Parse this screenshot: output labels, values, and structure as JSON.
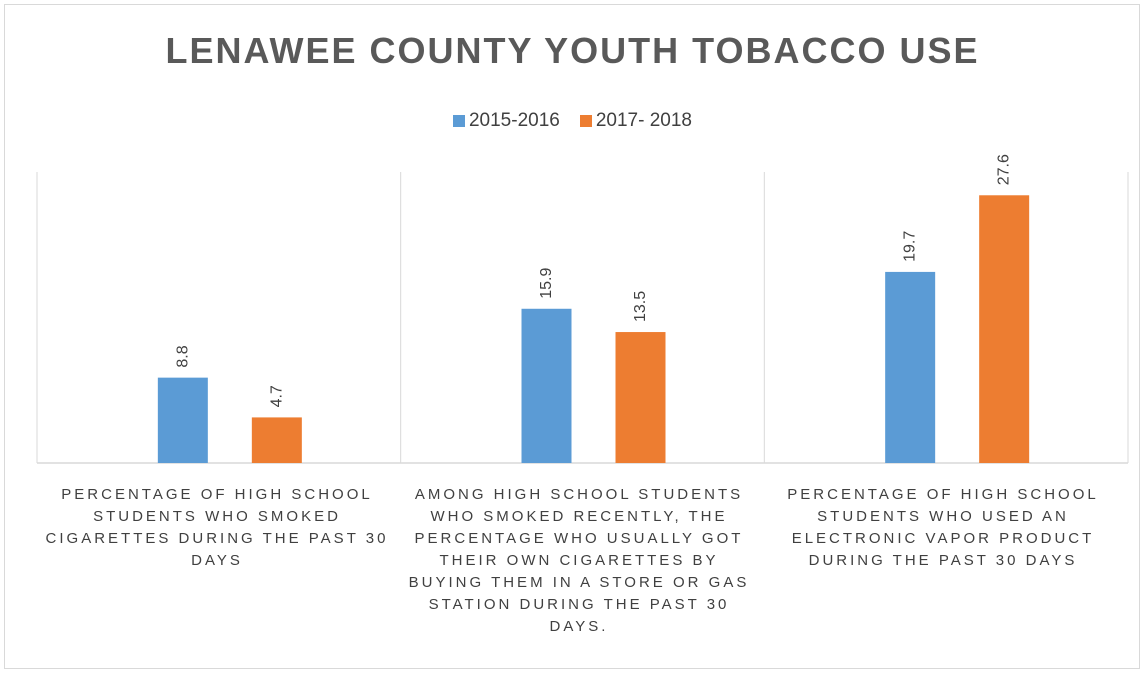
{
  "chart_data": {
    "type": "bar",
    "title": "LENAWEE COUNTY YOUTH TOBACCO USE",
    "categories": [
      "PERCENTAGE OF HIGH SCHOOL STUDENTS WHO SMOKED CIGARETTES DURING THE PAST 30 DAYS",
      "AMONG HIGH SCHOOL STUDENTS WHO SMOKED RECENTLY, THE PERCENTAGE WHO USUALLY GOT THEIR OWN CIGARETTES BY BUYING THEM IN A STORE OR GAS STATION DURING THE PAST 30 DAYS.",
      "PERCENTAGE OF HIGH SCHOOL STUDENTS WHO USED AN ELECTRONIC VAPOR PRODUCT DURING THE PAST 30 DAYS"
    ],
    "series": [
      {
        "name": "2015-2016",
        "values": [
          8.8,
          15.9,
          19.7
        ],
        "color": "#5b9bd5"
      },
      {
        "name": "2017- 2018",
        "values": [
          4.7,
          13.5,
          27.6
        ],
        "color": "#ed7d31"
      }
    ],
    "value_labels": [
      [
        "8.8",
        "15.9",
        "19.7"
      ],
      [
        "4.7",
        "13.5",
        "27.6"
      ]
    ],
    "ylim": [
      0,
      30
    ],
    "legend_position": "top",
    "grid": false,
    "xlabel": "",
    "ylabel": ""
  }
}
